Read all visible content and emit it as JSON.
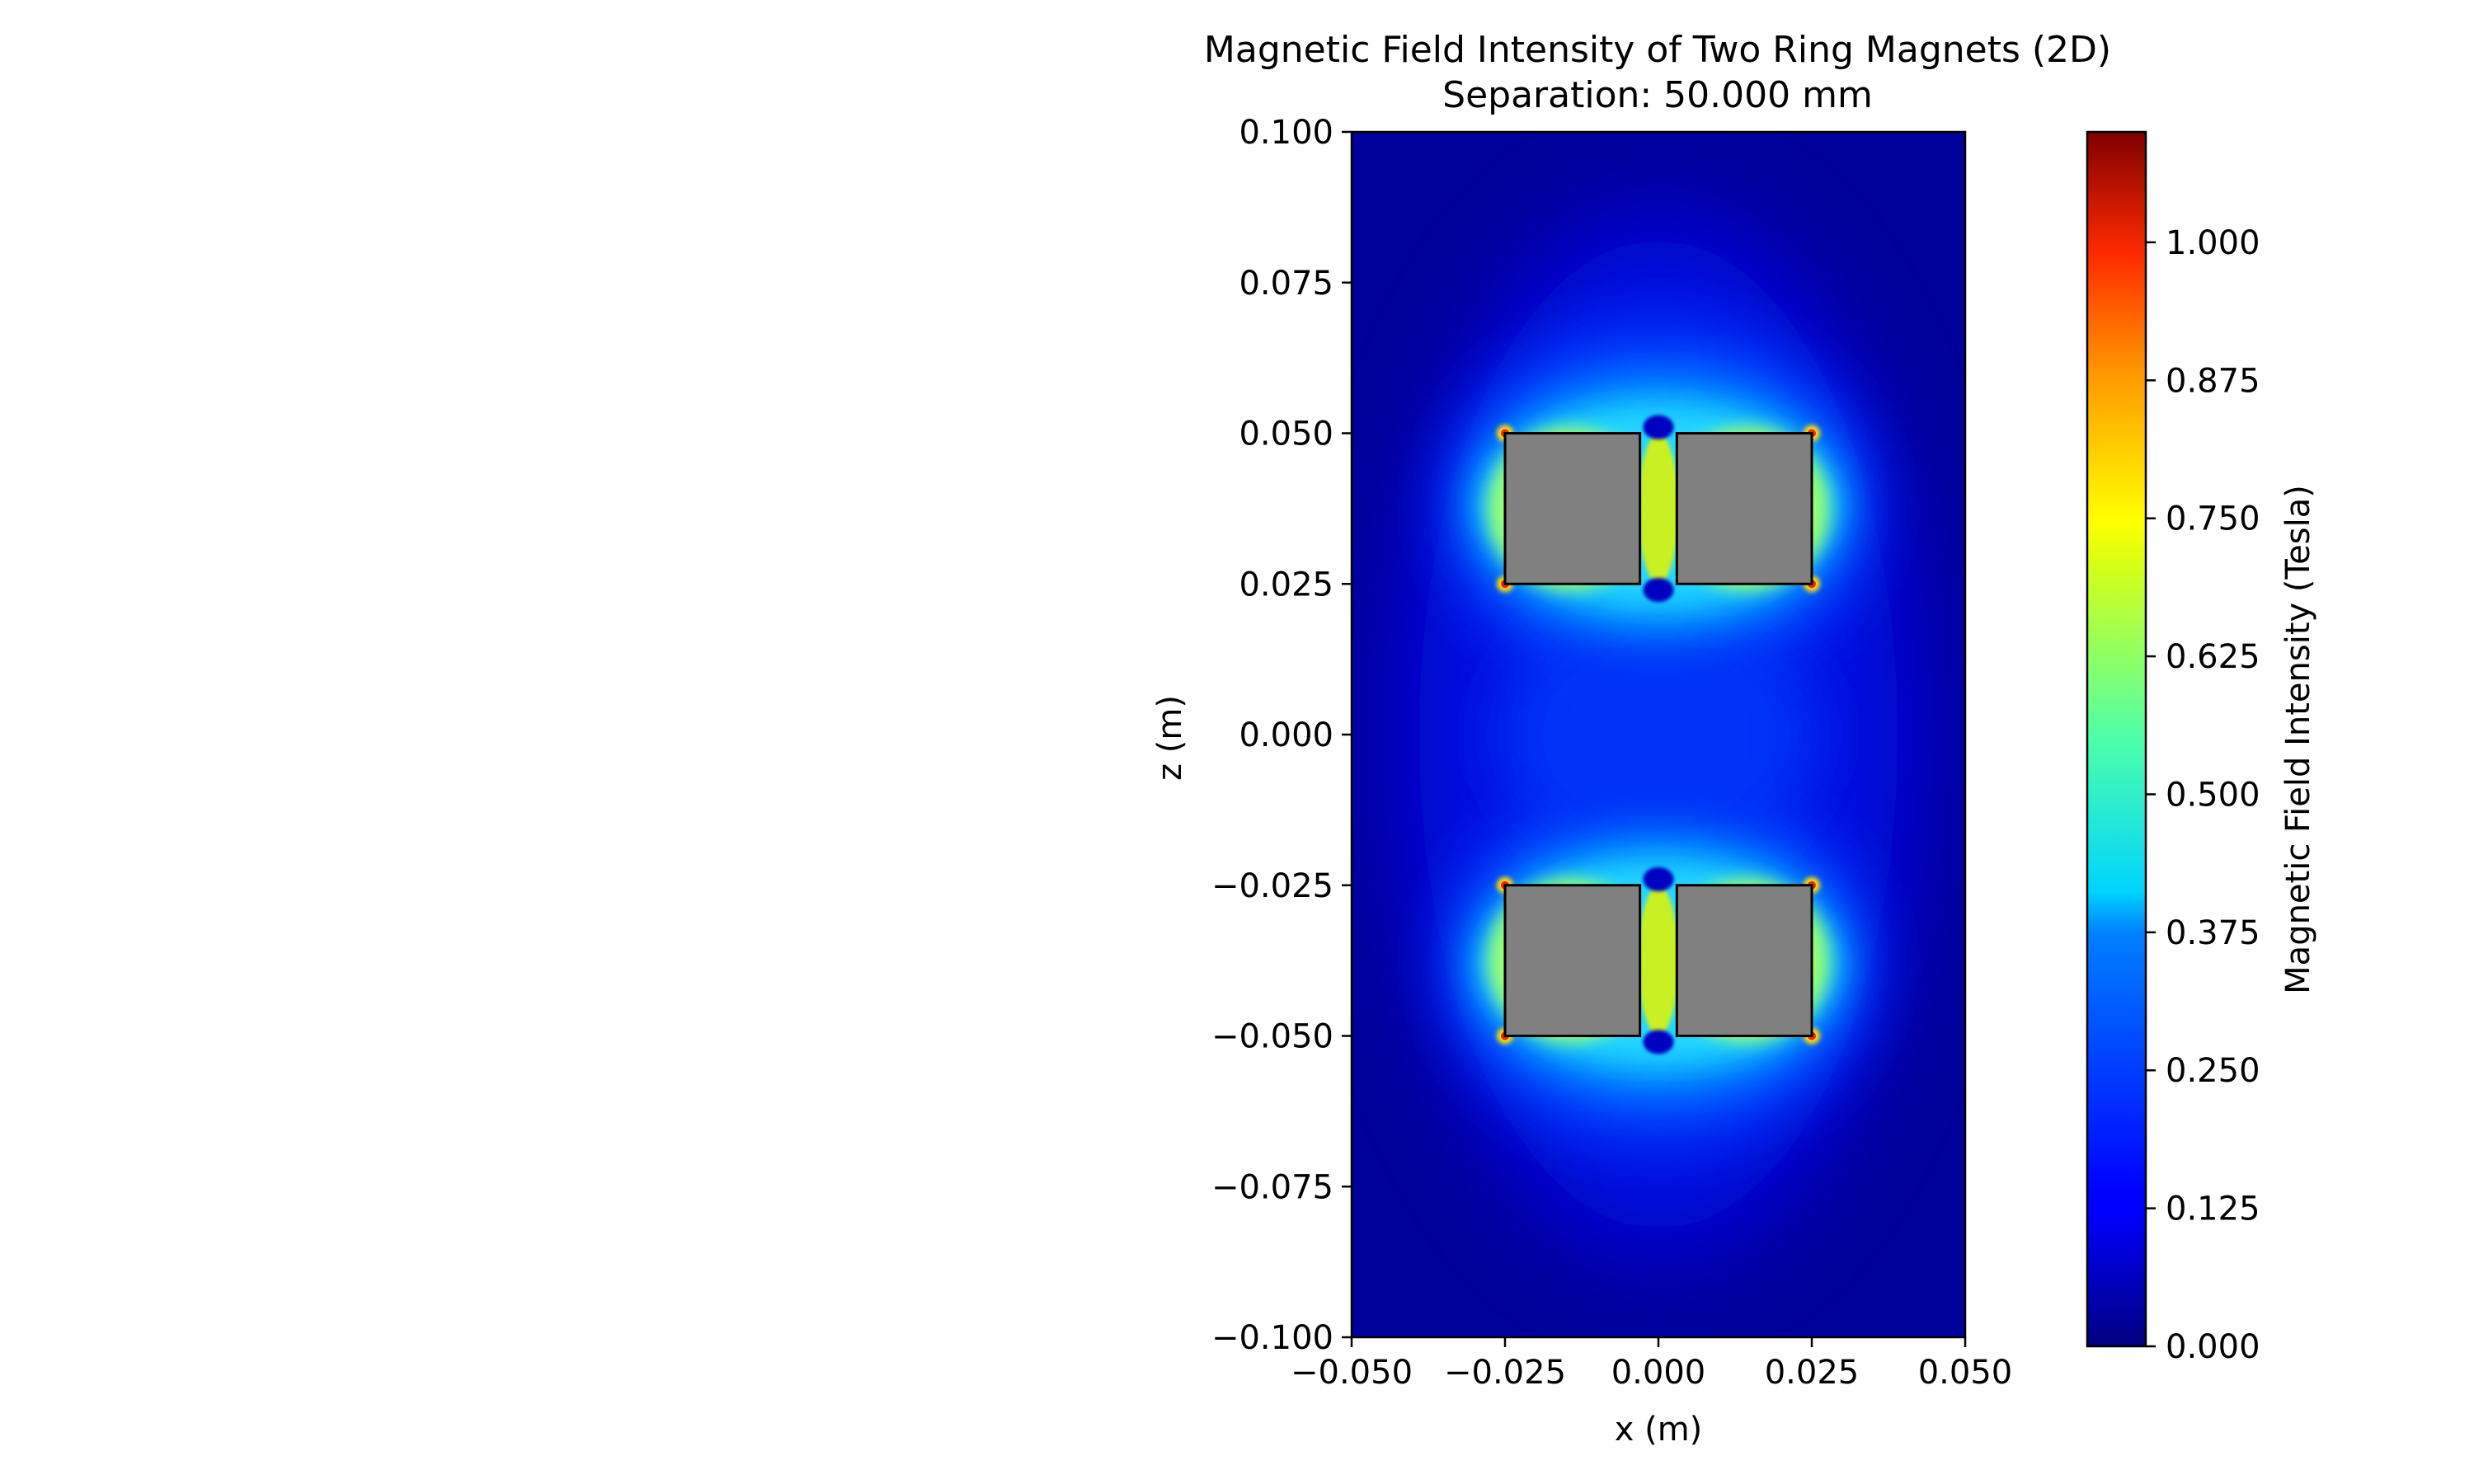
{
  "chart_data": {
    "type": "heatmap",
    "title": "Magnetic Field Intensity of Two Ring Magnets (2D)",
    "subtitle": "Separation: 50.000 mm",
    "xlabel": "x (m)",
    "ylabel": "z (m)",
    "xlim": [
      -0.05,
      0.05
    ],
    "ylim": [
      -0.1,
      0.1
    ],
    "x_ticks": [
      -0.05,
      -0.025,
      0.0,
      0.025,
      0.05
    ],
    "x_tick_labels": [
      "−0.050",
      "−0.025",
      "0.000",
      "0.025",
      "0.050"
    ],
    "y_ticks": [
      0.1,
      0.075,
      0.05,
      0.025,
      0.0,
      -0.025,
      -0.05,
      -0.075,
      -0.1
    ],
    "y_tick_labels": [
      "0.100",
      "0.075",
      "0.050",
      "0.025",
      "0.000",
      "−0.025",
      "−0.050",
      "−0.075",
      "−0.100"
    ],
    "colormap": "jet",
    "colorbar": {
      "label": "Magnetic Field Intensity (Tesla)",
      "vmin": 0.0,
      "vmax": 1.1,
      "ticks": [
        0.0,
        0.125,
        0.25,
        0.375,
        0.5,
        0.625,
        0.75,
        0.875,
        1.0
      ],
      "tick_labels": [
        "0.000",
        "0.125",
        "0.250",
        "0.375",
        "0.500",
        "0.625",
        "0.750",
        "0.875",
        "1.000"
      ]
    },
    "magnets": [
      {
        "x": [
          -0.025,
          -0.003
        ],
        "z": [
          0.025,
          0.05
        ]
      },
      {
        "x": [
          0.003,
          0.025
        ],
        "z": [
          0.025,
          0.05
        ]
      },
      {
        "x": [
          -0.025,
          -0.003
        ],
        "z": [
          -0.05,
          -0.025
        ]
      },
      {
        "x": [
          0.003,
          0.025
        ],
        "z": [
          -0.05,
          -0.025
        ]
      }
    ],
    "magnet_fill": "#808080",
    "background_field_color": "#00009a",
    "field_regions": [
      {
        "cx": 0.0,
        "cz": 0.0,
        "rx": 0.047,
        "rz": 0.092,
        "color": "#0000b8",
        "blur": 40
      },
      {
        "cx": 0.0,
        "cz": 0.0,
        "rx": 0.039,
        "rz": 0.082,
        "color": "#0010e0",
        "blur": 40
      },
      {
        "cx": 0.0,
        "cz": 0.038,
        "rx": 0.035,
        "rz": 0.03,
        "color": "#0040ff",
        "blur": 35
      },
      {
        "cx": 0.0,
        "cz": -0.038,
        "rx": 0.035,
        "rz": 0.03,
        "color": "#0040ff",
        "blur": 35
      },
      {
        "cx": 0.0,
        "cz": 0.0,
        "rx": 0.026,
        "rz": 0.022,
        "color": "#0030f8",
        "blur": 35
      },
      {
        "cx": 0.0,
        "cz": 0.038,
        "rx": 0.031,
        "rz": 0.022,
        "color": "#0090ff",
        "blur": 25
      },
      {
        "cx": 0.0,
        "cz": -0.038,
        "rx": 0.031,
        "rz": 0.022,
        "color": "#0090ff",
        "blur": 25
      },
      {
        "cx": 0.0,
        "cz": 0.038,
        "rx": 0.029,
        "rz": 0.017,
        "color": "#20d8ff",
        "blur": 18
      },
      {
        "cx": 0.0,
        "cz": -0.038,
        "rx": 0.029,
        "rz": 0.017,
        "color": "#20d8ff",
        "blur": 18
      },
      {
        "cx": -0.0145,
        "cz": 0.0375,
        "rx": 0.0132,
        "rz": 0.0135,
        "color": "#9aff70",
        "blur": 10
      },
      {
        "cx": 0.0145,
        "cz": 0.0375,
        "rx": 0.0132,
        "rz": 0.0135,
        "color": "#9aff70",
        "blur": 10
      },
      {
        "cx": -0.0145,
        "cz": -0.0375,
        "rx": 0.0132,
        "rz": 0.0135,
        "color": "#9aff70",
        "blur": 10
      },
      {
        "cx": 0.0145,
        "cz": -0.0375,
        "rx": 0.0132,
        "rz": 0.0135,
        "color": "#9aff70",
        "blur": 10
      },
      {
        "cx": 0.0,
        "cz": 0.0375,
        "rx": 0.0032,
        "rz": 0.0125,
        "color": "#c8f020",
        "blur": 2
      },
      {
        "cx": 0.0,
        "cz": -0.0375,
        "rx": 0.0032,
        "rz": 0.0125,
        "color": "#c8f020",
        "blur": 2
      },
      {
        "cx": 0.0,
        "cz": 0.051,
        "rx": 0.0025,
        "rz": 0.002,
        "color": "#0000c0",
        "blur": 2
      },
      {
        "cx": 0.0,
        "cz": 0.024,
        "rx": 0.0025,
        "rz": 0.002,
        "color": "#0000c0",
        "blur": 2
      },
      {
        "cx": 0.0,
        "cz": -0.024,
        "rx": 0.0025,
        "rz": 0.002,
        "color": "#0000c0",
        "blur": 2
      },
      {
        "cx": 0.0,
        "cz": -0.051,
        "rx": 0.0025,
        "rz": 0.002,
        "color": "#0000c0",
        "blur": 2
      }
    ],
    "hot_corners": [
      {
        "x": -0.025,
        "z": 0.05
      },
      {
        "x": 0.025,
        "z": 0.05
      },
      {
        "x": -0.025,
        "z": 0.025
      },
      {
        "x": 0.025,
        "z": 0.025
      },
      {
        "x": -0.025,
        "z": -0.025
      },
      {
        "x": 0.025,
        "z": -0.025
      },
      {
        "x": -0.025,
        "z": -0.05
      },
      {
        "x": 0.025,
        "z": -0.05
      }
    ]
  }
}
